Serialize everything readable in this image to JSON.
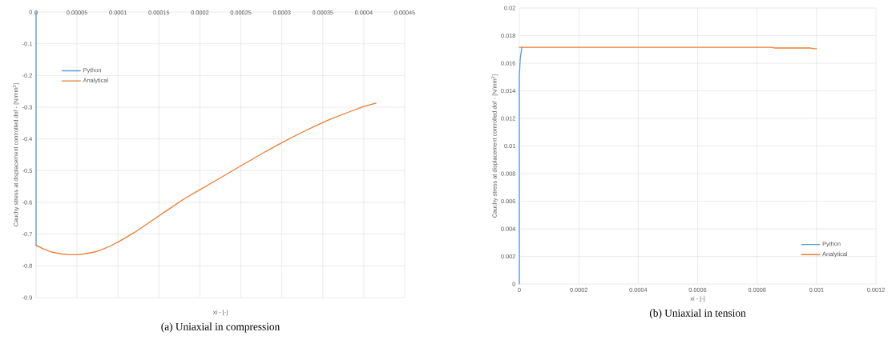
{
  "chart_data": [
    {
      "type": "line",
      "title": "(a)  Uniaxial in compression",
      "xlabel": "xi - [-]",
      "ylabel": "Cauchy stress at displacement controlled dof - [N/mm$^{2}$]",
      "xlim": [
        0,
        0.00045
      ],
      "ylim": [
        -0.9,
        0
      ],
      "xticks": [
        0,
        {
          "value": 5e-05,
          "label": "0.00005"
        },
        0.0001,
        0.00015,
        0.0002,
        0.00025,
        0.0003,
        0.00035,
        0.0004,
        0.00045
      ],
      "yticks": [
        -0.9,
        -0.8,
        -0.7,
        -0.6,
        -0.5,
        -0.4,
        -0.3,
        -0.2,
        -0.1,
        0
      ],
      "grid": true,
      "legend": "top left",
      "series": [
        {
          "name": "Python",
          "color": "#5b9bd5",
          "x": [
            0,
            0,
            2e-06
          ],
          "values": [
            0,
            -0.735,
            -0.737
          ]
        },
        {
          "name": "Analytical",
          "color": "#ed7d31",
          "x": [
            0,
            1e-05,
            2e-05,
            3e-05,
            4e-05,
            5e-05,
            6e-05,
            7e-05,
            8e-05,
            9e-05,
            0.0001,
            0.00012,
            0.00014,
            0.00016,
            0.00018,
            0.0002,
            0.00022,
            0.00024,
            0.00026,
            0.00028,
            0.0003,
            0.00032,
            0.00034,
            0.00036,
            0.00038,
            0.0004,
            0.000415
          ],
          "values": [
            -0.735,
            -0.748,
            -0.757,
            -0.762,
            -0.765,
            -0.765,
            -0.762,
            -0.757,
            -0.749,
            -0.738,
            -0.725,
            -0.695,
            -0.66,
            -0.625,
            -0.59,
            -0.56,
            -0.53,
            -0.5,
            -0.47,
            -0.44,
            -0.412,
            -0.385,
            -0.36,
            -0.337,
            -0.317,
            -0.298,
            -0.287
          ]
        }
      ]
    },
    {
      "type": "line",
      "title": "(b)  Uniaxial in tension",
      "xlabel": "xi - [-]",
      "ylabel": "Cauchy stress at displacement controlled dof - [N/mm$^{2}$]",
      "xlim": [
        0,
        0.0012
      ],
      "ylim": [
        0,
        0.02
      ],
      "xticks": [
        0,
        0.0002,
        0.0004,
        0.0006,
        0.0008,
        0.001,
        0.0012
      ],
      "yticks": [
        0,
        0.002,
        0.004,
        0.006,
        0.008,
        0.01,
        0.012,
        0.014,
        0.016,
        0.018,
        0.02
      ],
      "grid": true,
      "legend": "bottom right",
      "series": [
        {
          "name": "Python",
          "color": "#5b9bd5",
          "x": [
            0,
            0,
            3e-06,
            8e-06,
            1e-05
          ],
          "values": [
            0,
            0.015,
            0.0163,
            0.0171,
            0.01715
          ]
        },
        {
          "name": "Analytical",
          "color": "#ed7d31",
          "x": [
            0,
            0.00085,
            0.00086,
            0.00098,
            0.00099,
            0.001
          ],
          "values": [
            0.01715,
            0.01715,
            0.0171,
            0.0171,
            0.01705,
            0.01705
          ]
        }
      ]
    }
  ]
}
